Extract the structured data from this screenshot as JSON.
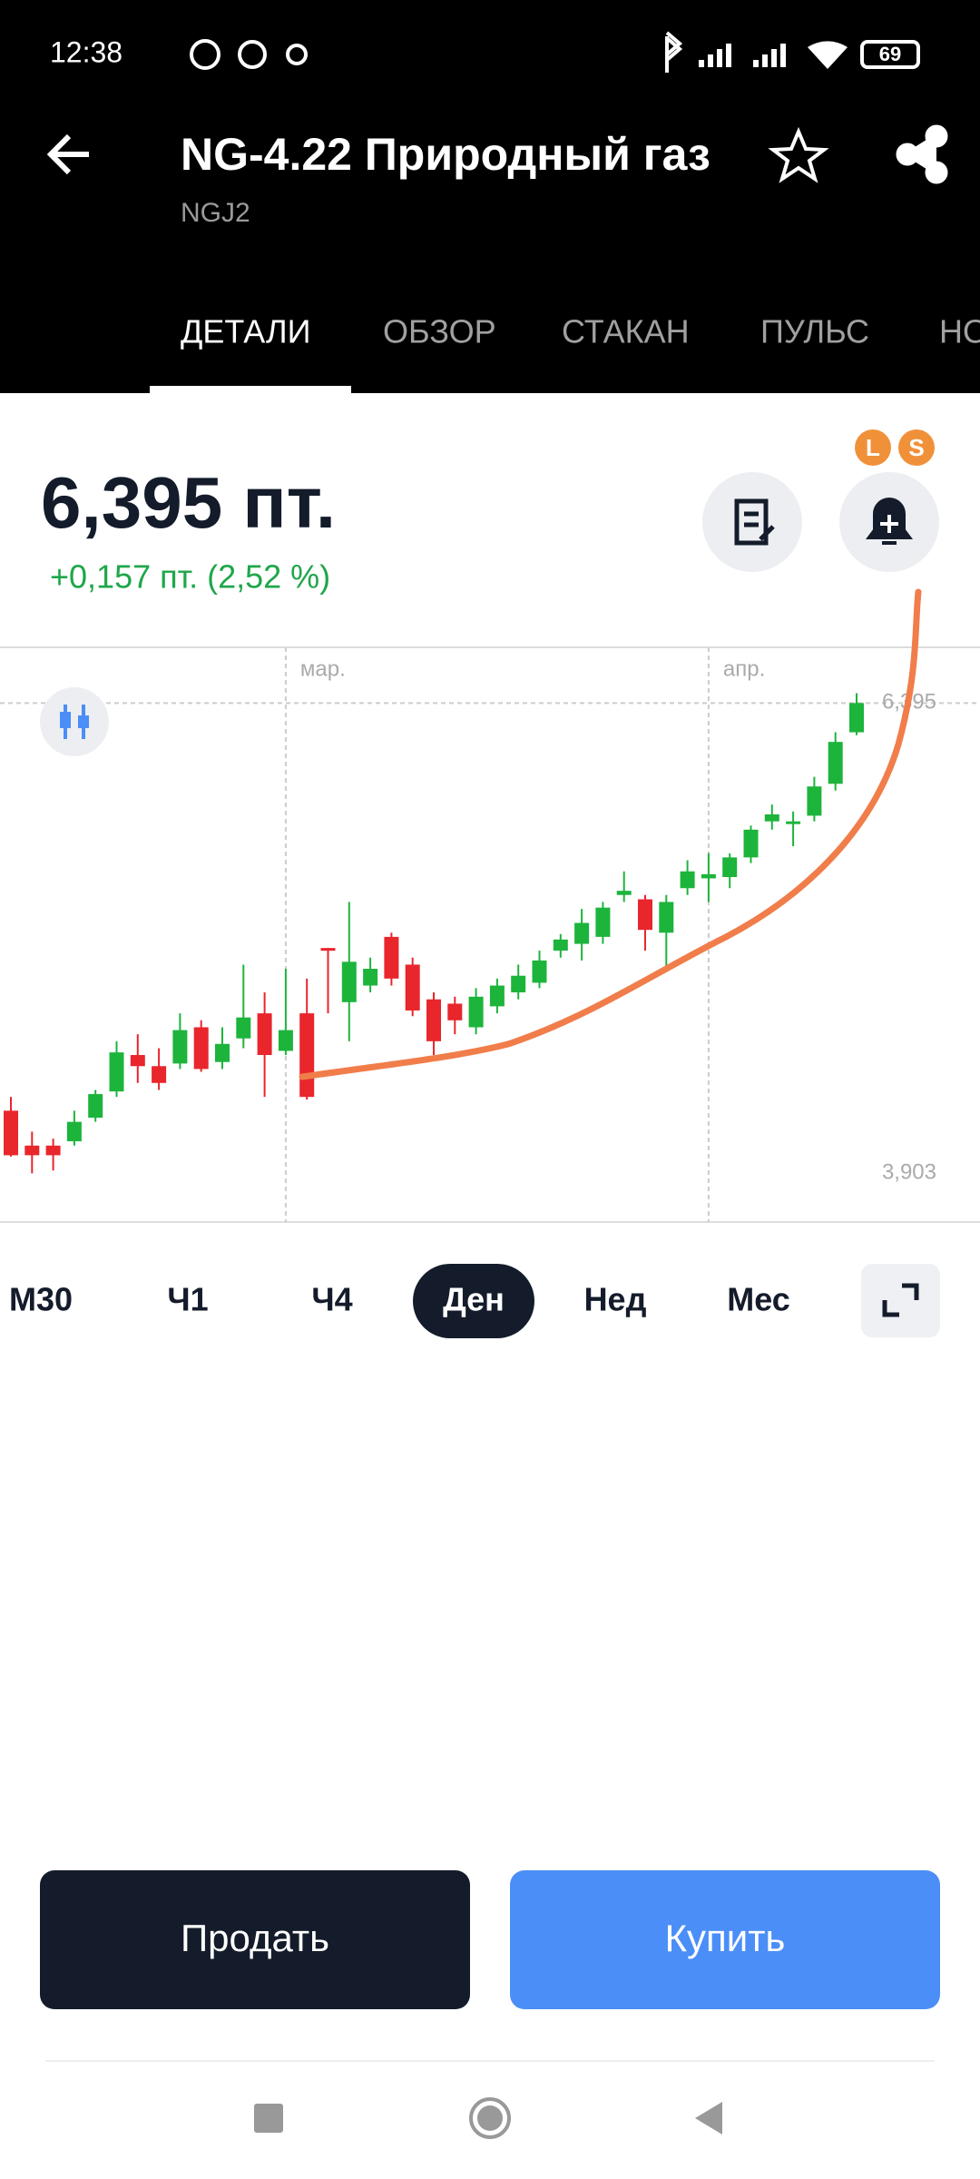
{
  "status_bar": {
    "time": "12:38",
    "battery": "69"
  },
  "header": {
    "title": "NG-4.22 Природный газ",
    "ticker": "NGJ2"
  },
  "tabs": [
    "ДЕТАЛИ",
    "ОБЗОР",
    "СТАКАН",
    "ПУЛЬС",
    "НО"
  ],
  "badges": [
    "L",
    "S"
  ],
  "price": {
    "value": "6,395 пт.",
    "change": "+0,157 пт. (2,52 %)"
  },
  "chart_data": {
    "type": "candlestick",
    "up_color": "#1db43c",
    "down_color": "#e8262c",
    "categories": [
      null,
      null,
      null,
      null,
      null,
      null,
      null,
      null,
      null,
      null,
      null,
      null,
      null,
      "мар.",
      null,
      null,
      null,
      null,
      null,
      null,
      null,
      null,
      null,
      null,
      null,
      null,
      null,
      null,
      null,
      null,
      null,
      null,
      null,
      "апр.",
      null,
      null,
      null,
      null,
      null,
      null,
      null
    ],
    "ohlc": [
      [
        4.235,
        4.308,
        3.992,
        3.999
      ],
      [
        4.05,
        4.124,
        3.903,
        3.999
      ],
      [
        4.05,
        4.087,
        3.918,
        3.999
      ],
      [
        4.073,
        4.235,
        4.05,
        4.176
      ],
      [
        4.198,
        4.345,
        4.176,
        4.323
      ],
      [
        4.337,
        4.603,
        4.308,
        4.544
      ],
      [
        4.53,
        4.64,
        4.382,
        4.471
      ],
      [
        4.471,
        4.566,
        4.345,
        4.382
      ],
      [
        4.485,
        4.751,
        4.456,
        4.662
      ],
      [
        4.677,
        4.714,
        4.441,
        4.456
      ],
      [
        4.493,
        4.677,
        4.456,
        4.589
      ],
      [
        4.618,
        5.009,
        4.566,
        4.729
      ],
      [
        4.751,
        4.862,
        4.308,
        4.53
      ],
      [
        4.552,
        4.987,
        4.53,
        4.662
      ],
      [
        4.751,
        4.935,
        4.294,
        4.308
      ],
      [
        5.097,
        5.097,
        4.751,
        5.083
      ],
      [
        4.81,
        5.341,
        4.603,
        5.024
      ],
      [
        4.898,
        5.046,
        4.862,
        4.987
      ],
      [
        5.156,
        5.178,
        4.898,
        4.935
      ],
      [
        5.009,
        5.046,
        4.736,
        4.766
      ],
      [
        4.825,
        4.862,
        4.53,
        4.603
      ],
      [
        4.802,
        4.839,
        4.64,
        4.714
      ],
      [
        4.677,
        4.884,
        4.64,
        4.839
      ],
      [
        4.788,
        4.935,
        4.751,
        4.898
      ],
      [
        4.862,
        5.009,
        4.825,
        4.95
      ],
      [
        4.913,
        5.083,
        4.884,
        5.031
      ],
      [
        5.083,
        5.171,
        5.046,
        5.142
      ],
      [
        5.119,
        5.304,
        5.031,
        5.23
      ],
      [
        5.156,
        5.341,
        5.119,
        5.311
      ],
      [
        5.378,
        5.503,
        5.341,
        5.4
      ],
      [
        5.355,
        5.378,
        5.083,
        5.193
      ],
      [
        5.178,
        5.378,
        4.972,
        5.341
      ],
      [
        5.414,
        5.562,
        5.378,
        5.503
      ],
      [
        5.466,
        5.599,
        5.341,
        5.488
      ],
      [
        5.473,
        5.599,
        5.414,
        5.577
      ],
      [
        5.577,
        5.746,
        5.547,
        5.724
      ],
      [
        5.768,
        5.857,
        5.724,
        5.805
      ],
      [
        5.754,
        5.82,
        5.636,
        5.768
      ],
      [
        5.798,
        6.004,
        5.768,
        5.953
      ],
      [
        5.967,
        6.24,
        5.931,
        6.189
      ],
      [
        6.24,
        6.447,
        6.225,
        6.395
      ]
    ],
    "ylim": [
      3.645,
      6.69
    ],
    "yticks": [
      {
        "value": 6.395,
        "label": "6,395"
      },
      {
        "value": 3.903,
        "label": "3,903"
      }
    ]
  },
  "timeframes": [
    "М30",
    "Ч1",
    "Ч4",
    "Ден",
    "Нед",
    "Мес"
  ],
  "selected_timeframe": 3,
  "buttons": {
    "sell": "Продать",
    "buy": "Купить"
  }
}
